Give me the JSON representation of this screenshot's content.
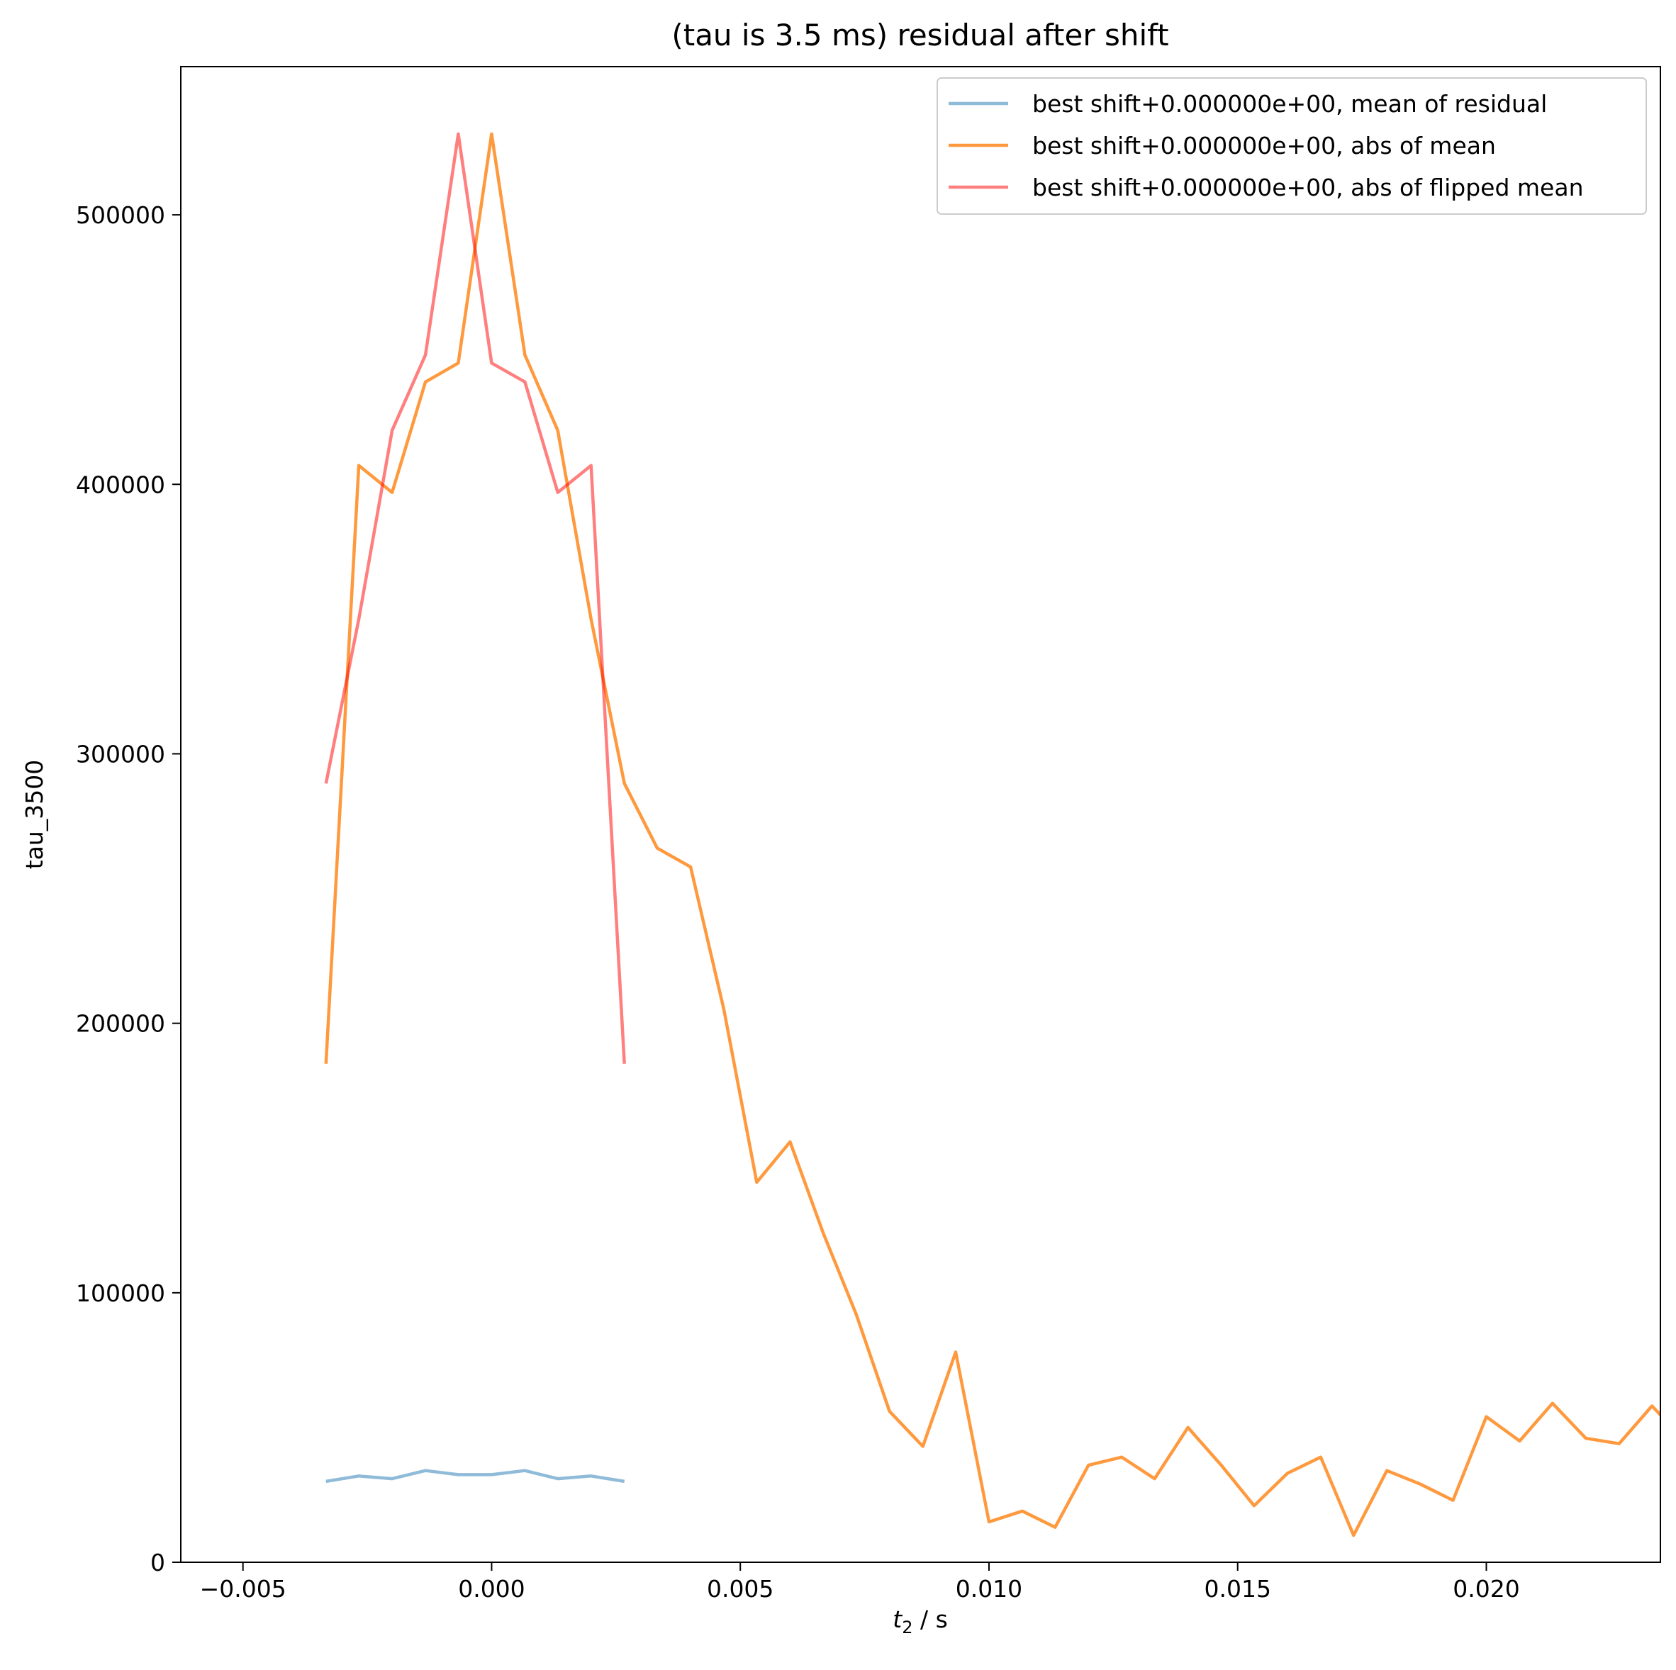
{
  "chart_data": {
    "type": "line",
    "title": "(tau is 3.5 ms) residual after shift",
    "xlabel_var": "t",
    "xlabel_sub": "2",
    "xlabel_unit": " / s",
    "ylabel": "tau_3500",
    "xlim": [
      -0.00625,
      0.0235
    ],
    "ylim": [
      0,
      555000
    ],
    "xticks": [
      -0.005,
      0.0,
      0.005,
      0.01,
      0.015,
      0.02
    ],
    "xtick_labels": [
      "−0.005",
      "0.000",
      "0.005",
      "0.010",
      "0.015",
      "0.020"
    ],
    "yticks": [
      0,
      100000,
      200000,
      300000,
      400000,
      500000
    ],
    "ytick_labels": [
      "0",
      "100000",
      "200000",
      "300000",
      "400000",
      "500000"
    ],
    "grid": false,
    "legend_position": "top-right",
    "series": [
      {
        "name": "best shift+0.000000e+00, mean of residual",
        "color": "#1f77b4",
        "opacity": 0.5,
        "x": [
          -0.00333,
          -0.00267,
          -0.002,
          -0.00133,
          -0.00067,
          0.0,
          0.00067,
          0.00133,
          0.002,
          0.00267
        ],
        "y": [
          30000,
          32000,
          31000,
          34000,
          32500,
          32500,
          34000,
          31000,
          32000,
          30000
        ]
      },
      {
        "name": "best shift+0.000000e+00, abs of mean",
        "color": "#ff7f0e",
        "opacity": 0.8,
        "x": [
          -0.00333,
          -0.00267,
          -0.002,
          -0.00133,
          -0.00067,
          0.0,
          0.00067,
          0.00133,
          0.002,
          0.00267,
          0.00333,
          0.004,
          0.00467,
          0.00533,
          0.006,
          0.00667,
          0.00733,
          0.008,
          0.00867,
          0.00933,
          0.01,
          0.01067,
          0.01133,
          0.012,
          0.01267,
          0.01333,
          0.014,
          0.01467,
          0.01533,
          0.016,
          0.01667,
          0.01733,
          0.018,
          0.01867,
          0.01933,
          0.02,
          0.02067,
          0.02133,
          0.022,
          0.02267,
          0.02333,
          0.024
        ],
        "y": [
          185000,
          407000,
          397000,
          438000,
          445000,
          530000,
          448000,
          420000,
          350000,
          289000,
          265000,
          258000,
          205000,
          141000,
          156000,
          122000,
          92000,
          56000,
          43000,
          78000,
          15000,
          19000,
          13000,
          36000,
          39000,
          31000,
          50000,
          36000,
          21000,
          33000,
          39000,
          10000,
          34000,
          29000,
          23000,
          54000,
          45000,
          59000,
          46000,
          44000,
          58000,
          45000
        ]
      },
      {
        "name": "best shift+0.000000e+00, abs of flipped mean",
        "color": "#ff0000",
        "opacity": 0.5,
        "x": [
          -0.00333,
          -0.00267,
          -0.002,
          -0.00133,
          -0.00067,
          0.0,
          0.00067,
          0.00133,
          0.002,
          0.00267
        ],
        "y": [
          289000,
          350000,
          420000,
          448000,
          530000,
          445000,
          438000,
          397000,
          407000,
          185000
        ]
      }
    ]
  }
}
